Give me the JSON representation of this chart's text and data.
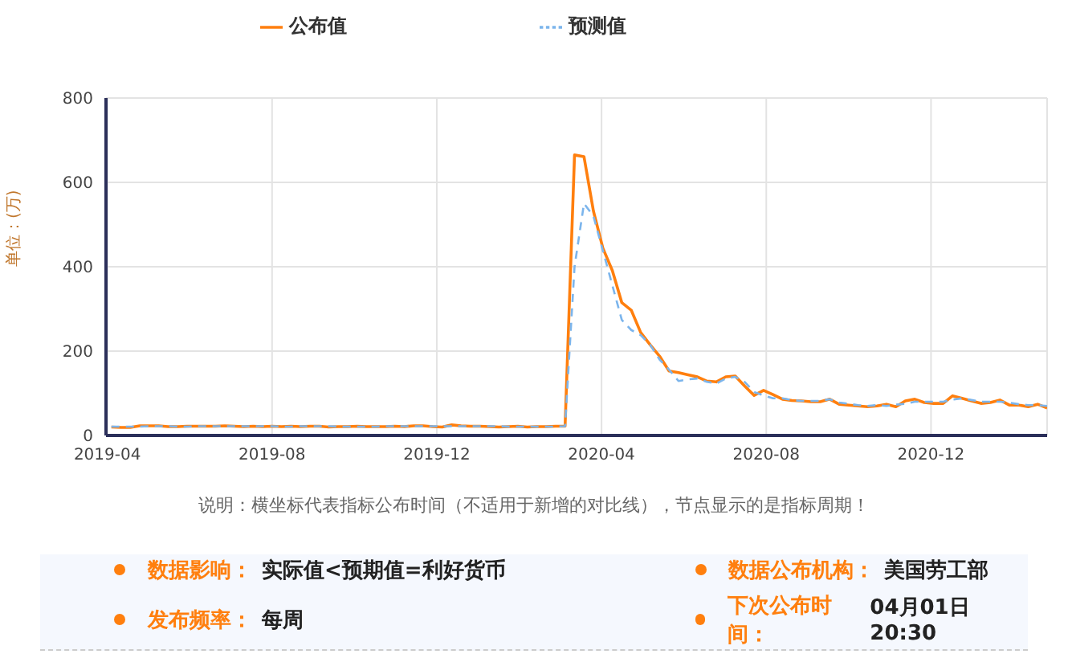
{
  "chart_data": {
    "type": "line",
    "ylabel": "单位：(万)",
    "x": [
      "2019-04-04",
      "2019-04-11",
      "2019-04-18",
      "2019-04-25",
      "2019-05-02",
      "2019-05-09",
      "2019-05-16",
      "2019-05-23",
      "2019-05-30",
      "2019-06-06",
      "2019-06-13",
      "2019-06-20",
      "2019-06-27",
      "2019-07-04",
      "2019-07-11",
      "2019-07-18",
      "2019-07-25",
      "2019-08-01",
      "2019-08-08",
      "2019-08-15",
      "2019-08-22",
      "2019-08-29",
      "2019-09-05",
      "2019-09-12",
      "2019-09-19",
      "2019-09-26",
      "2019-10-03",
      "2019-10-10",
      "2019-10-17",
      "2019-10-24",
      "2019-10-31",
      "2019-11-07",
      "2019-11-14",
      "2019-11-21",
      "2019-11-28",
      "2019-12-05",
      "2019-12-12",
      "2019-12-19",
      "2019-12-26",
      "2020-01-02",
      "2020-01-09",
      "2020-01-16",
      "2020-01-23",
      "2020-01-30",
      "2020-02-06",
      "2020-02-13",
      "2020-02-20",
      "2020-02-27",
      "2020-03-05",
      "2020-03-12",
      "2020-03-19",
      "2020-03-26",
      "2020-04-02",
      "2020-04-09",
      "2020-04-16",
      "2020-04-23",
      "2020-04-30",
      "2020-05-07",
      "2020-05-14",
      "2020-05-21",
      "2020-05-28",
      "2020-06-04",
      "2020-06-11",
      "2020-06-18",
      "2020-06-25",
      "2020-07-02",
      "2020-07-09",
      "2020-07-16",
      "2020-07-23",
      "2020-07-30",
      "2020-08-06",
      "2020-08-13",
      "2020-08-20",
      "2020-08-27",
      "2020-09-03",
      "2020-09-10",
      "2020-09-17",
      "2020-09-24",
      "2020-10-01",
      "2020-10-08",
      "2020-10-15",
      "2020-10-22",
      "2020-10-29",
      "2020-11-05",
      "2020-11-12",
      "2020-11-19",
      "2020-11-26",
      "2020-12-03",
      "2020-12-10",
      "2020-12-17",
      "2020-12-24",
      "2020-12-31",
      "2021-01-07",
      "2021-01-14",
      "2021-01-21",
      "2021-01-28",
      "2021-02-04",
      "2021-02-11",
      "2021-02-18",
      "2021-02-25"
    ],
    "series": [
      {
        "name": "公布值",
        "color": "#ff7f0e",
        "line_style": "solid",
        "values": [
          20,
          19,
          19,
          23,
          23,
          23,
          21,
          21,
          22,
          22,
          22,
          22,
          23,
          22,
          21,
          22,
          21,
          22,
          21,
          22,
          21,
          22,
          22,
          20,
          21,
          21,
          22,
          21,
          21,
          21,
          22,
          21,
          23,
          23,
          21,
          20,
          25,
          23,
          22,
          22,
          21,
          20,
          21,
          22,
          20,
          21,
          21,
          22,
          22,
          665,
          661,
          532,
          444,
          391,
          315,
          297,
          244,
          215,
          188,
          153,
          149,
          144,
          139,
          129,
          127,
          139,
          141,
          117,
          95,
          107,
          97,
          86,
          83,
          82,
          80,
          80,
          86,
          74,
          72,
          70,
          68,
          70,
          74,
          68,
          82,
          86,
          78,
          76,
          76,
          94,
          88,
          82,
          76,
          78,
          84,
          72,
          72,
          68,
          74,
          65
        ]
      },
      {
        "name": "预测值",
        "color": "#7cb5ec",
        "line_style": "dashed",
        "values": [
          21,
          21,
          21,
          21,
          22,
          22,
          22,
          21,
          21,
          22,
          22,
          22,
          22,
          22,
          22,
          22,
          22,
          22,
          21,
          21,
          22,
          22,
          22,
          22,
          21,
          21,
          21,
          21,
          21,
          22,
          22,
          22,
          22,
          22,
          22,
          22,
          22,
          22,
          22,
          22,
          22,
          22,
          21,
          21,
          21,
          21,
          21,
          21,
          22,
          400,
          550,
          520,
          438,
          356,
          274,
          250,
          238,
          215,
          180,
          156,
          129,
          133,
          135,
          127,
          123,
          135,
          139,
          127,
          103,
          95,
          88,
          88,
          84,
          82,
          82,
          82,
          86,
          78,
          75,
          72,
          70,
          72,
          70,
          73,
          75,
          80,
          80,
          80,
          80,
          85,
          88,
          84,
          80,
          80,
          80,
          78,
          74,
          72,
          72,
          70
        ]
      }
    ],
    "xlim": [
      "2019-03-31",
      "2021-02-25"
    ],
    "xticks": [
      "2019-04",
      "2019-08",
      "2019-12",
      "2020-04",
      "2020-08",
      "2020-12"
    ],
    "ylim": [
      0,
      800
    ],
    "yticks": [
      0,
      200,
      400,
      600,
      800
    ],
    "grid": true,
    "legend": "top",
    "marker": "none",
    "annotations": [
      "说明：横坐标代表指标公布时间（不适用于新增的对比线），节点显示的是指标周期！",
      "数据影响：",
      "实际值<预期值=利好货币",
      "数据公布机构：",
      "美国劳工部",
      "发布频率：",
      "每周",
      "下次公布时间：",
      "04月01日 20:30"
    ]
  }
}
